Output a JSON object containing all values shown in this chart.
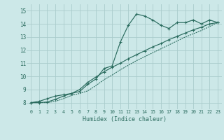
{
  "xlabel": "Humidex (Indice chaleur)",
  "xlim": [
    -0.5,
    23.5
  ],
  "ylim": [
    7.5,
    15.5
  ],
  "xticks": [
    0,
    1,
    2,
    3,
    4,
    5,
    6,
    7,
    8,
    9,
    10,
    11,
    12,
    13,
    14,
    15,
    16,
    17,
    18,
    19,
    20,
    21,
    22,
    23
  ],
  "yticks": [
    8,
    9,
    10,
    11,
    12,
    13,
    14,
    15
  ],
  "bg_color": "#cce8e8",
  "grid_color": "#aacccc",
  "line_color": "#2a6b5e",
  "line1_y": [
    8.0,
    8.0,
    8.1,
    8.3,
    8.5,
    8.6,
    8.7,
    8.85,
    9.4,
    9.8,
    10.6,
    10.8,
    12.6,
    13.9,
    14.75,
    14.6,
    14.3,
    13.9,
    13.65,
    14.1,
    14.1,
    14.3,
    14.0,
    14.3,
    14.1
  ],
  "line2_y": [
    8.0,
    8.0,
    8.0,
    8.05,
    8.25,
    8.5,
    8.7,
    9.0,
    9.55,
    9.95,
    10.35,
    10.7,
    11.0,
    11.35,
    11.65,
    11.95,
    12.25,
    12.5,
    12.8,
    13.05,
    13.3,
    13.55,
    13.75,
    14.0,
    14.1
  ],
  "line3_y": [
    8.0,
    8.0,
    8.0,
    8.0,
    8.1,
    8.3,
    8.55,
    8.7,
    8.9,
    9.3,
    9.75,
    10.1,
    10.5,
    10.85,
    11.2,
    11.5,
    11.8,
    12.1,
    12.4,
    12.7,
    13.0,
    13.25,
    13.5,
    13.8,
    14.1
  ]
}
